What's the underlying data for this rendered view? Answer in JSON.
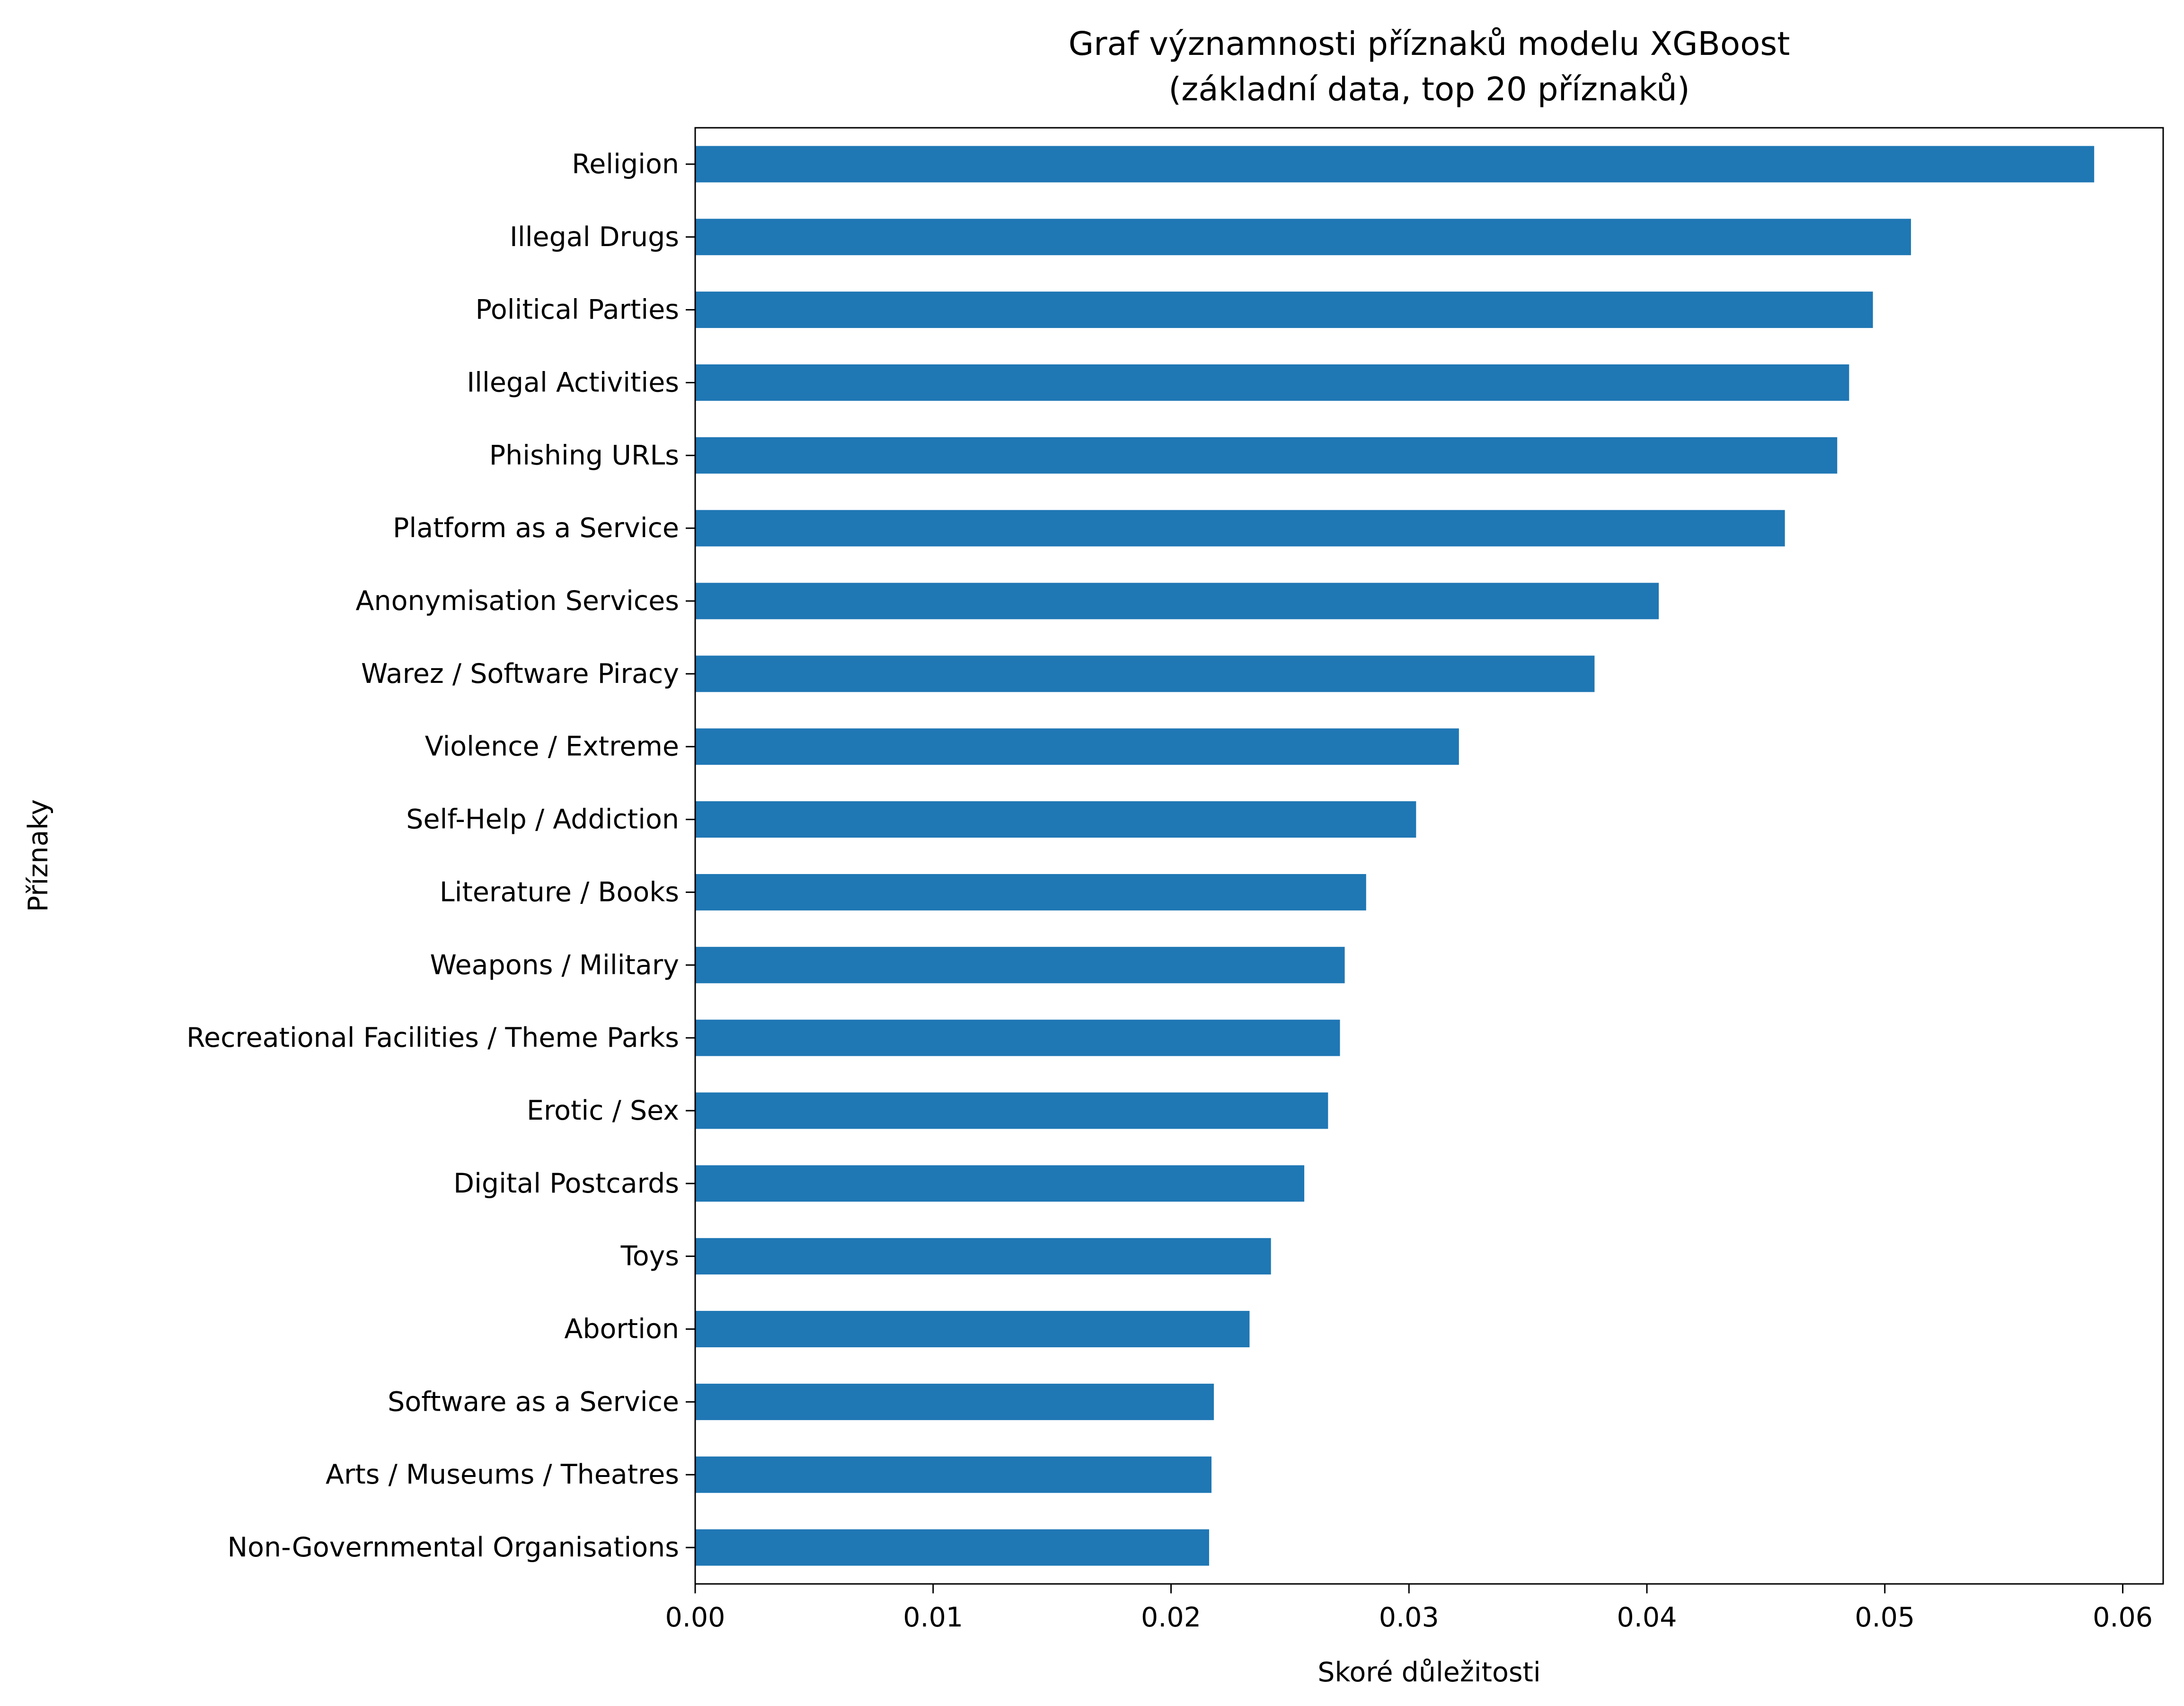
{
  "chart_data": {
    "type": "bar",
    "orientation": "horizontal",
    "title": "Graf významnosti příznaků modelu XGBoost",
    "subtitle": "(základní data, top 20 příznaků)",
    "xlabel": "Skoré důležitosti",
    "ylabel": "Příznaky",
    "xlim": [
      0,
      0.0617
    ],
    "xticks": [
      "0.00",
      "0.01",
      "0.02",
      "0.03",
      "0.04",
      "0.05",
      "0.06"
    ],
    "grid": false,
    "bar_color": "#1f77b4",
    "categories": [
      "Religion",
      "Illegal Drugs",
      "Political Parties",
      "Illegal Activities",
      "Phishing URLs",
      "Platform as a Service",
      "Anonymisation Services",
      "Warez / Software Piracy",
      "Violence / Extreme",
      "Self-Help / Addiction",
      "Literature / Books",
      "Weapons / Military",
      "Recreational Facilities / Theme Parks",
      "Erotic / Sex",
      "Digital Postcards",
      "Toys",
      "Abortion",
      "Software as a Service",
      "Arts / Museums / Theatres",
      "Non-Governmental Organisations"
    ],
    "values": [
      0.0588,
      0.0511,
      0.0495,
      0.0485,
      0.048,
      0.0458,
      0.0405,
      0.0378,
      0.0321,
      0.0303,
      0.0282,
      0.0273,
      0.0271,
      0.0266,
      0.0256,
      0.0242,
      0.0233,
      0.0218,
      0.0217,
      0.0216
    ]
  }
}
